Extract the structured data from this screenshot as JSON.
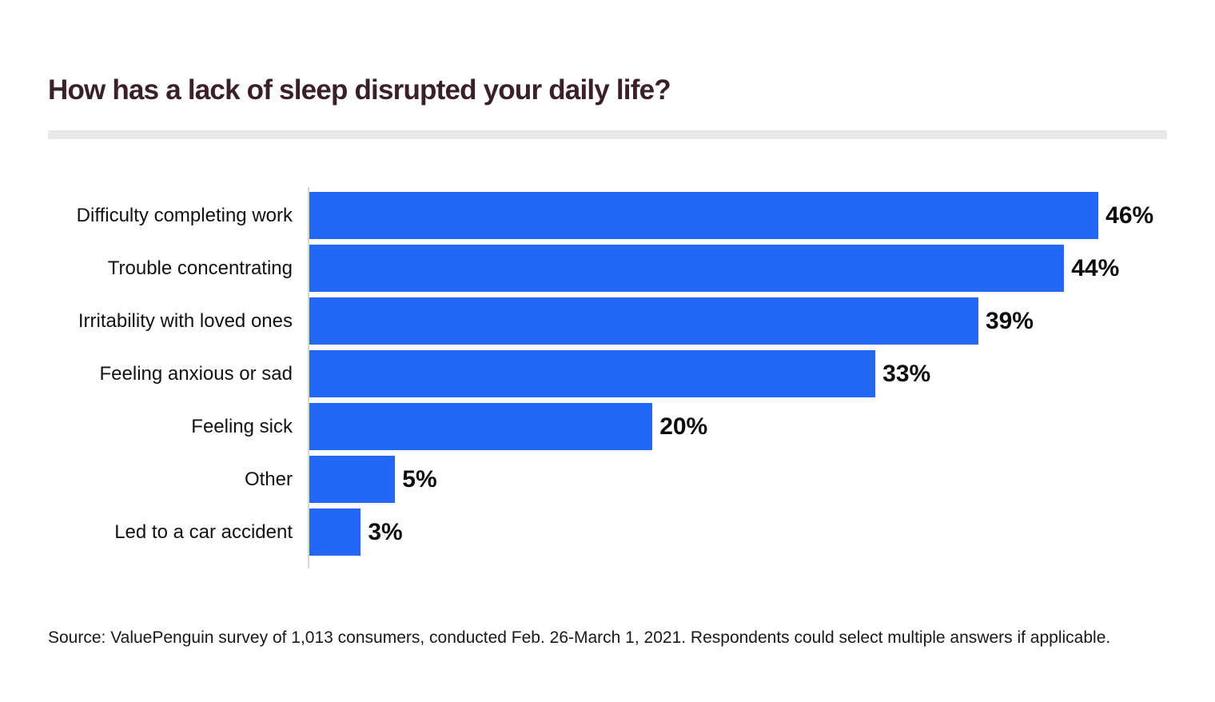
{
  "header": {
    "title": "How has a lack of sleep disrupted your daily life?"
  },
  "colors": {
    "background": "#FFFFFF",
    "bar": "#2368F4",
    "title": "#3A2127",
    "category_label": "#121212",
    "value_label": "#0D0D0D",
    "divider": "#E8E8E8",
    "axis": "#D6D6D6",
    "source_text": "#191919"
  },
  "chart_data": {
    "type": "bar",
    "orientation": "horizontal",
    "title": "How has a lack of sleep disrupted your daily life?",
    "categories": [
      "Difficulty completing work",
      "Trouble concentrating",
      "Irritability with loved ones",
      "Feeling anxious or sad",
      "Feeling sick",
      "Other",
      "Led to a car accident"
    ],
    "values": [
      46,
      44,
      39,
      33,
      20,
      5,
      3
    ],
    "value_labels": [
      "46%",
      "44%",
      "39%",
      "33%",
      "20%",
      "5%",
      "3%"
    ],
    "xlabel": "",
    "ylabel": "",
    "xlim": [
      0,
      50
    ],
    "grid": false,
    "legend": false,
    "value_label_position": "end-of-bar"
  },
  "footer": {
    "source": "Source: ValuePenguin survey of 1,013 consumers, conducted Feb. 26-March 1, 2021. Respondents could select multiple answers if applicable."
  }
}
